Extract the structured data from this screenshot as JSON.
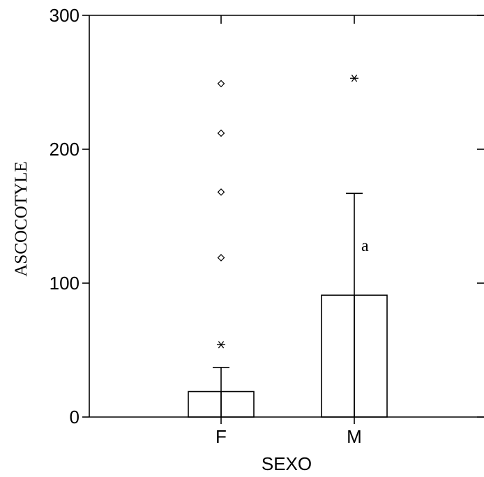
{
  "chart_data": {
    "type": "bar",
    "xlabel": "SEXO",
    "ylabel": "ASCOCOTYLE",
    "categories": [
      "F",
      "M"
    ],
    "values": [
      19,
      91
    ],
    "error_upper": [
      37,
      167
    ],
    "ylim": [
      0,
      300
    ],
    "yticks": [
      0,
      100,
      200,
      300
    ],
    "ytick_labels": [
      "0",
      "100",
      "200",
      "300"
    ],
    "outliers": [
      {
        "category": "F",
        "value": 54,
        "marker": "asterisk"
      },
      {
        "category": "F",
        "value": 119,
        "marker": "circle"
      },
      {
        "category": "F",
        "value": 168,
        "marker": "circle"
      },
      {
        "category": "F",
        "value": 212,
        "marker": "circle"
      },
      {
        "category": "F",
        "value": 249,
        "marker": "circle"
      },
      {
        "category": "M",
        "value": 253,
        "marker": "asterisk"
      }
    ],
    "annotations": [
      {
        "category": "M",
        "value": 128,
        "text": "a"
      }
    ],
    "grid": false,
    "legend": "none"
  }
}
